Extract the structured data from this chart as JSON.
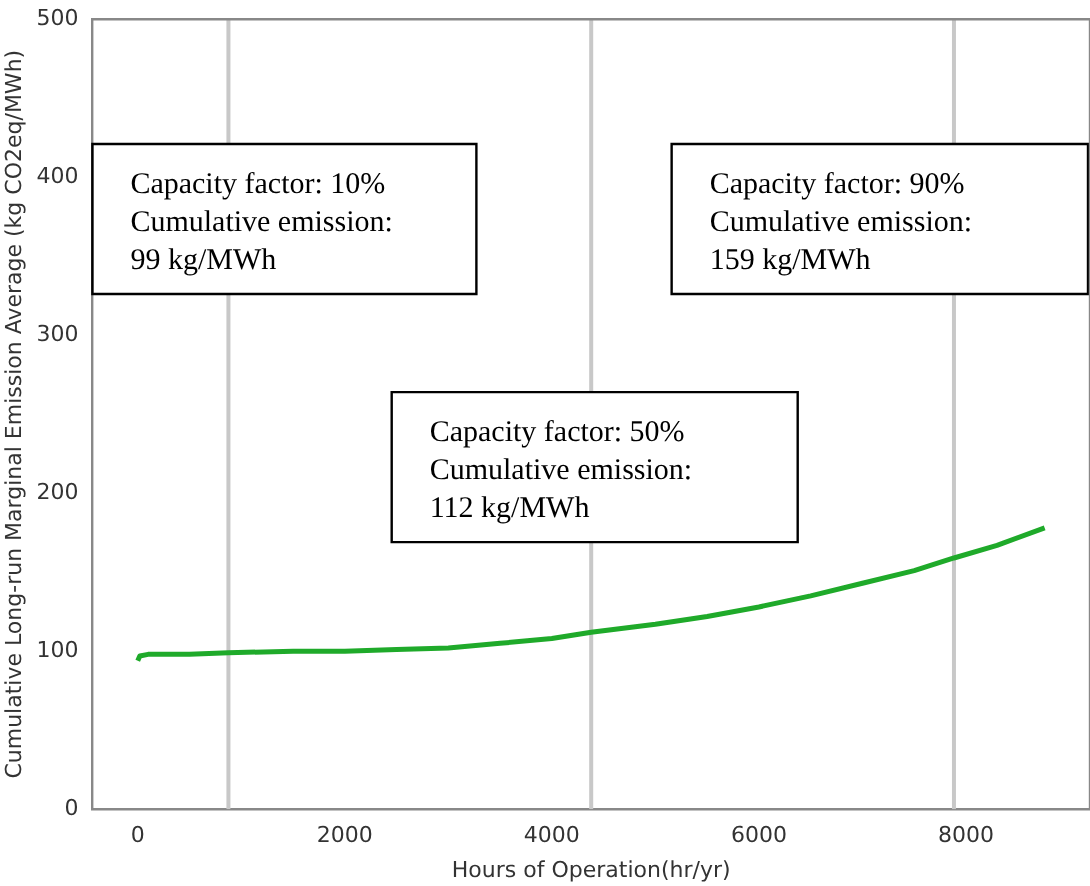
{
  "chart_data": {
    "type": "line",
    "xlabel": "Hours of Operation(hr/yr)",
    "ylabel": "Cumulative Long-run Marginal Emission Average (kg CO2eq/MWh)",
    "series": [
      {
        "color": "#1faa2a",
        "x": [
          0,
          20,
          100,
          500,
          876,
          1500,
          2000,
          2500,
          3000,
          3500,
          4000,
          4380,
          5000,
          5500,
          6000,
          6500,
          7000,
          7500,
          7884,
          8300,
          8760
        ],
        "values": [
          94,
          97,
          98,
          98,
          99,
          100,
          100,
          101,
          102,
          105,
          108,
          112,
          117,
          122,
          128,
          135,
          143,
          151,
          159,
          167,
          178
        ]
      }
    ],
    "xlim": [
      -438,
      9198
    ],
    "xticks": [
      0,
      2000,
      4000,
      6000,
      8000
    ],
    "ylim": [
      0,
      500
    ],
    "yticks": [
      0,
      100,
      200,
      300,
      400,
      500
    ],
    "grid": false,
    "legend": false,
    "marker": "none",
    "line_style": "solid",
    "ref_lines": [
      {
        "axis": "x",
        "value": 876,
        "color": "#c8c8c8"
      },
      {
        "axis": "x",
        "value": 4380,
        "color": "#c8c8c8"
      },
      {
        "axis": "x",
        "value": 7884,
        "color": "#c8c8c8"
      }
    ],
    "annotations": [
      "Capacity factor: 10%\nCumulative emission:\n99 kg/MWh",
      "Capacity factor: 90%\nCumulative emission:\n159 kg/MWh",
      "Capacity factor: 50%\nCumulative emission:\n112 kg/MWh"
    ]
  }
}
